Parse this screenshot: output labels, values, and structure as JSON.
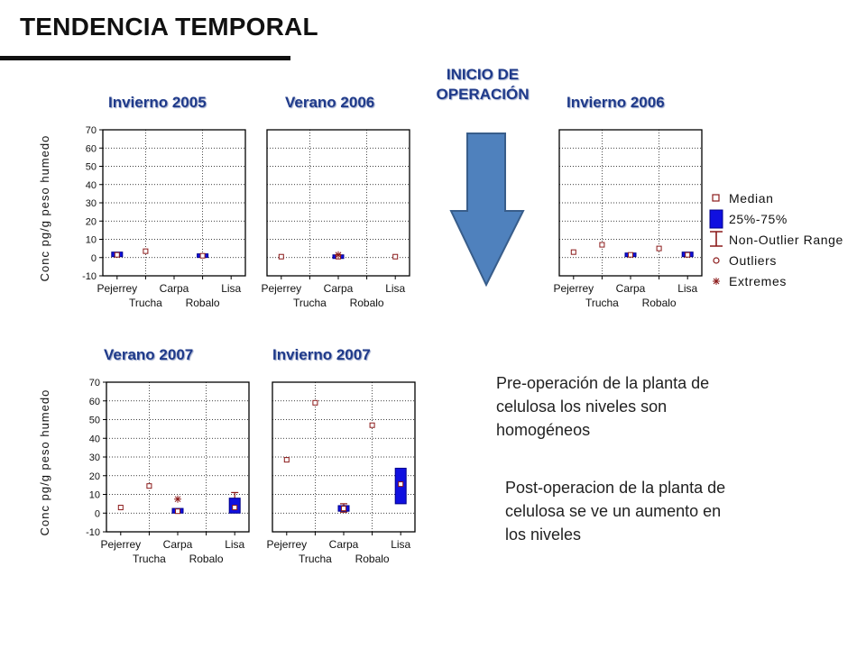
{
  "header": {
    "title": "TENDENCIA TEMPORAL"
  },
  "inicio": {
    "line1": "INICIO DE",
    "line2": "OPERACIÓN"
  },
  "notes": {
    "pre": [
      "Pre-operación de la planta de",
      "celulosa los niveles son",
      "homogéneos"
    ],
    "post": [
      "Post-operacion de la planta de",
      "celulosa se ve un aumento  en",
      "los niveles"
    ]
  },
  "colors": {
    "box_fill": "#1010e0",
    "box_stroke": "#00008b",
    "marker": "#8b1a1a",
    "whisker": "#8b1a1a",
    "arrow": "#4f81bd",
    "arrow_stroke": "#385d8a",
    "title": "#1f3a8a"
  },
  "legend": {
    "items": [
      {
        "symbol": "median",
        "label": "Median"
      },
      {
        "symbol": "box",
        "label": "25%-75%"
      },
      {
        "symbol": "whisker",
        "label": "Non-Outlier Range"
      },
      {
        "symbol": "outlier",
        "label": "Outliers"
      },
      {
        "symbol": "extreme",
        "label": "Extremes"
      }
    ]
  },
  "chart_data": [
    {
      "type": "box",
      "title": "Invierno 2005",
      "ylabel": "Conc pg/g peso humedo",
      "ylim": [
        -10,
        70
      ],
      "yticks": [
        -10,
        0,
        10,
        20,
        30,
        40,
        50,
        60,
        70
      ],
      "categories": [
        "Pejerrey",
        "Trucha",
        "Carpa",
        "Robalo",
        "Lisa"
      ],
      "grid": true,
      "show_yticks": true,
      "data": [
        {
          "category": "Pejerrey",
          "median": 1.5,
          "q1": 0.5,
          "q3": 3,
          "whisker_low": 0.5,
          "whisker_high": 3
        },
        {
          "category": "Trucha",
          "median": 3.5
        },
        {
          "category": "Carpa",
          "median": null
        },
        {
          "category": "Robalo",
          "median": 1,
          "q1": 0.3,
          "q3": 1.8,
          "whisker_low": 0.3,
          "whisker_high": 1.8
        },
        {
          "category": "Lisa",
          "median": null
        }
      ]
    },
    {
      "type": "box",
      "title": "Verano 2006",
      "ylim": [
        -10,
        70
      ],
      "categories": [
        "Pejerrey",
        "Trucha",
        "Carpa",
        "Robalo",
        "Lisa"
      ],
      "grid": true,
      "show_yticks": false,
      "data": [
        {
          "category": "Pejerrey",
          "median": 0.5
        },
        {
          "category": "Trucha",
          "median": null
        },
        {
          "category": "Carpa",
          "median": 0.5,
          "q1": 0,
          "q3": 1,
          "whisker_low": 0,
          "whisker_high": 1,
          "extremes": [
            1.5
          ]
        },
        {
          "category": "Robalo",
          "median": null
        },
        {
          "category": "Lisa",
          "median": 0.5
        }
      ]
    },
    {
      "type": "box",
      "title": "Invierno 2006",
      "ylim": [
        -10,
        70
      ],
      "categories": [
        "Pejerrey",
        "Trucha",
        "Carpa",
        "Robalo",
        "Lisa"
      ],
      "grid": true,
      "show_yticks": false,
      "data": [
        {
          "category": "Pejerrey",
          "median": 3
        },
        {
          "category": "Trucha",
          "median": 7
        },
        {
          "category": "Carpa",
          "median": 1.5,
          "q1": 0.5,
          "q3": 2.5,
          "whisker_low": 0.5,
          "whisker_high": 2.5
        },
        {
          "category": "Robalo",
          "median": 5
        },
        {
          "category": "Lisa",
          "median": 1.5,
          "q1": 0.5,
          "q3": 3,
          "whisker_low": 0.5,
          "whisker_high": 3
        }
      ]
    },
    {
      "type": "box",
      "title": "Verano 2007",
      "ylabel": "Conc pg/g peso humedo",
      "ylim": [
        -10,
        70
      ],
      "yticks": [
        -10,
        0,
        10,
        20,
        30,
        40,
        50,
        60,
        70
      ],
      "categories": [
        "Pejerrey",
        "Trucha",
        "Carpa",
        "Robalo",
        "Lisa"
      ],
      "grid": true,
      "show_yticks": true,
      "data": [
        {
          "category": "Pejerrey",
          "median": 3
        },
        {
          "category": "Trucha",
          "median": 14.5
        },
        {
          "category": "Carpa",
          "median": 1,
          "q1": 0,
          "q3": 2.5,
          "whisker_low": 0,
          "whisker_high": 2.5,
          "extremes": [
            7.5
          ]
        },
        {
          "category": "Robalo",
          "median": null
        },
        {
          "category": "Lisa",
          "median": 3,
          "q1": 0,
          "q3": 8,
          "whisker_low": 0,
          "whisker_high": 11
        }
      ]
    },
    {
      "type": "box",
      "title": "Invierno 2007",
      "ylim": [
        -10,
        70
      ],
      "categories": [
        "Pejerrey",
        "Trucha",
        "Carpa",
        "Robalo",
        "Lisa"
      ],
      "grid": true,
      "show_yticks": false,
      "data": [
        {
          "category": "Pejerrey",
          "median": 28.5
        },
        {
          "category": "Trucha",
          "median": 59
        },
        {
          "category": "Carpa",
          "median": 2.5,
          "q1": 1,
          "q3": 4,
          "whisker_low": 0.5,
          "whisker_high": 5
        },
        {
          "category": "Robalo",
          "median": 47
        },
        {
          "category": "Lisa",
          "median": 15.5,
          "q1": 5,
          "q3": 24,
          "whisker_low": 5,
          "whisker_high": 24
        }
      ]
    }
  ]
}
